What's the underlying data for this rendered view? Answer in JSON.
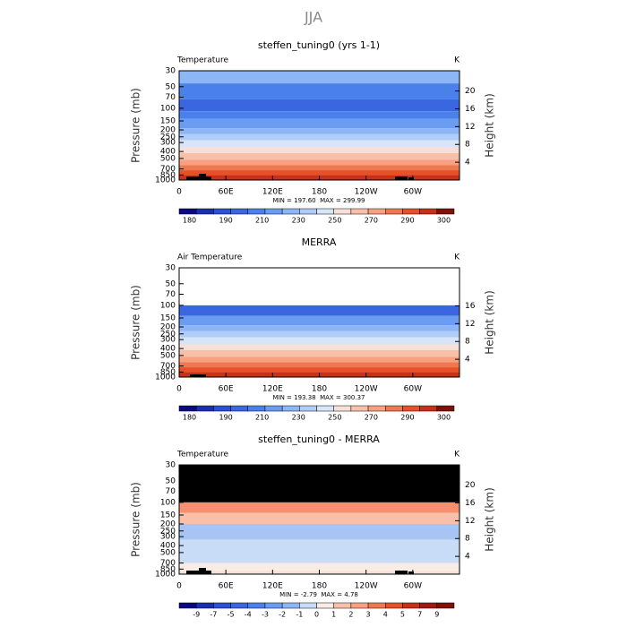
{
  "heading": "JJA",
  "chart_data": [
    {
      "type": "contour",
      "title": "steffen_tuning0 (yrs 1-1)",
      "field_label": "Temperature",
      "units": "K",
      "ylabel": "Pressure (mb)",
      "y2label": "Height (km)",
      "stats": "MIN = 197.60  MAX = 299.99",
      "ylog": true,
      "ylim": [
        1000,
        30
      ],
      "yticks": [
        30,
        50,
        70,
        100,
        150,
        200,
        250,
        300,
        400,
        500,
        700,
        850,
        1000
      ],
      "y2ticks": [
        4,
        8,
        12,
        16,
        20
      ],
      "xlim": [
        0,
        360
      ],
      "xticks": [
        0,
        {
          "value": 60,
          "label": "60E"
        },
        {
          "value": 120,
          "label": "120E"
        },
        180,
        {
          "value": 240,
          "label": "120W"
        },
        {
          "value": 300,
          "label": "60W"
        }
      ],
      "levels": [
        30,
        45,
        75,
        110,
        140,
        190,
        230,
        280,
        350,
        420,
        520,
        620,
        730,
        850,
        1000
      ],
      "colors": [
        "#8cb6f6",
        "#4a80ec",
        "#3a66e0",
        "#4a80ec",
        "#6a9cf2",
        "#8cb6f6",
        "#b0ccf8",
        "#d8e4f8",
        "#f8e0d8",
        "#f8c0a8",
        "#f8a080",
        "#f07850",
        "#e85028",
        "#c83018"
      ],
      "colorbar": {
        "colors": [
          "#0a0a80",
          "#1a2fb0",
          "#2a4fd8",
          "#3a66e0",
          "#4a80ec",
          "#6a9cf2",
          "#8cb6f6",
          "#b0ccf8",
          "#d8e4f8",
          "#f8e0d8",
          "#f8c0a8",
          "#f8a080",
          "#f07850",
          "#e85028",
          "#c83018",
          "#801008"
        ],
        "labels": [
          180,
          190,
          210,
          230,
          250,
          270,
          290,
          300
        ]
      }
    },
    {
      "type": "contour",
      "title": "MERRA",
      "field_label": "Air Temperature",
      "units": "K",
      "ylabel": "Pressure (mb)",
      "y2label": "Height (km)",
      "stats": "MIN = 193.38  MAX = 300.37",
      "ylog": true,
      "ylim": [
        1000,
        30
      ],
      "yticks": [
        30,
        50,
        70,
        100,
        150,
        200,
        250,
        300,
        400,
        500,
        700,
        850,
        1000
      ],
      "y2ticks": [
        4,
        8,
        12,
        16
      ],
      "xlim": [
        0,
        360
      ],
      "xticks": [
        0,
        {
          "value": 60,
          "label": "60E"
        },
        {
          "value": 120,
          "label": "120E"
        },
        180,
        {
          "value": 240,
          "label": "120W"
        },
        {
          "value": 300,
          "label": "60W"
        }
      ],
      "levels": [
        30,
        100,
        140,
        190,
        230,
        280,
        350,
        420,
        520,
        620,
        730,
        850,
        1000
      ],
      "colors": [
        "#ffffff",
        "#3a66e0",
        "#6a9cf2",
        "#8cb6f6",
        "#b0ccf8",
        "#d8e4f8",
        "#f8e0d8",
        "#f8c0a8",
        "#f8a080",
        "#f07850",
        "#e85028",
        "#c83018"
      ],
      "colorbar": {
        "colors": [
          "#0a0a80",
          "#1a2fb0",
          "#2a4fd8",
          "#3a66e0",
          "#4a80ec",
          "#6a9cf2",
          "#8cb6f6",
          "#b0ccf8",
          "#d8e4f8",
          "#f8e0d8",
          "#f8c0a8",
          "#f8a080",
          "#f07850",
          "#e85028",
          "#c83018",
          "#801008"
        ],
        "labels": [
          180,
          190,
          210,
          230,
          250,
          270,
          290,
          300
        ]
      }
    },
    {
      "type": "contour",
      "title": "steffen_tuning0 - MERRA",
      "field_label": "Temperature",
      "units": "K",
      "ylabel": "Pressure (mb)",
      "y2label": "Height (km)",
      "stats": "MIN = -2.79  MAX = 4.78",
      "ylog": true,
      "ylim": [
        1000,
        30
      ],
      "yticks": [
        30,
        50,
        70,
        100,
        150,
        200,
        250,
        300,
        400,
        500,
        700,
        850,
        1000
      ],
      "y2ticks": [
        4,
        8,
        12,
        16,
        20
      ],
      "xlim": [
        0,
        360
      ],
      "xticks": [
        0,
        {
          "value": 60,
          "label": "60E"
        },
        {
          "value": 120,
          "label": "120E"
        },
        180,
        {
          "value": 240,
          "label": "120W"
        },
        {
          "value": 300,
          "label": "60W"
        }
      ],
      "levels": [
        30,
        100,
        140,
        200,
        330,
        700,
        900,
        1000
      ],
      "colors": [
        "#000000",
        "#f49070",
        "#f8c0a8",
        "#a8c4f4",
        "#c8dcf8",
        "#f8ece4",
        "#f8e0d8"
      ],
      "colorbar": {
        "colors": [
          "#0a0a80",
          "#1a2fb0",
          "#2a4fd8",
          "#3a66e0",
          "#4a80ec",
          "#6a9cf2",
          "#8cb6f6",
          "#c8dcf8",
          "#f8ece4",
          "#f8c0a8",
          "#f8a080",
          "#f07850",
          "#e85028",
          "#c83018",
          "#a01810",
          "#801008"
        ],
        "labels": [
          -9,
          -7,
          -5,
          -4,
          -3,
          -2,
          -1,
          0,
          1,
          2,
          3,
          4,
          5,
          7,
          9
        ]
      }
    }
  ]
}
